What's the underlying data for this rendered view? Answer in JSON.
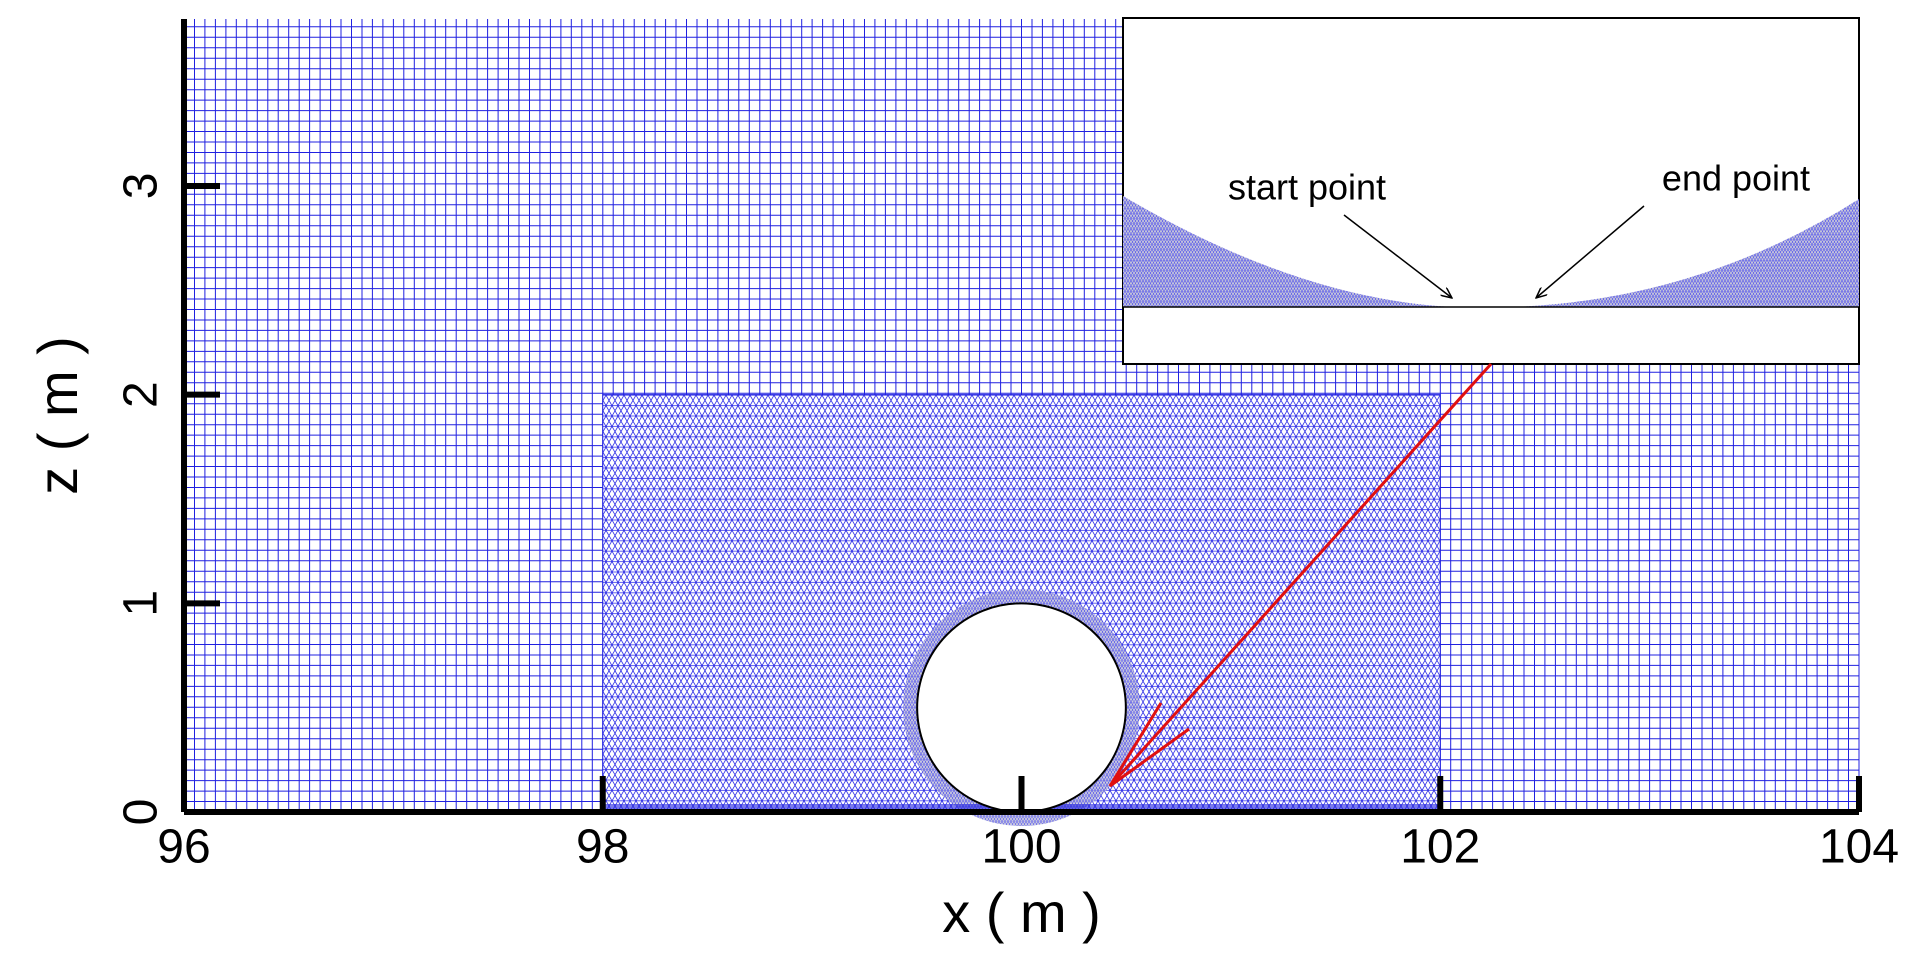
{
  "chart_data": {
    "type": "mesh",
    "xlabel": "x ( m )",
    "ylabel": "z ( m )",
    "xlim": [
      96,
      104
    ],
    "xticks": [
      96,
      98,
      100,
      102,
      104
    ],
    "ylim": [
      0,
      3.8
    ],
    "yticks": [
      0,
      1,
      2,
      3
    ],
    "color": "#2020e0",
    "annotations": [
      "start point",
      "end point"
    ]
  }
}
